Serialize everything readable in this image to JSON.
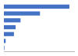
{
  "chart_data": {
    "type": "bar",
    "orientation": "horizontal",
    "categories": [
      null,
      null,
      null,
      null,
      null,
      null,
      null
    ],
    "values": [
      14762,
      8132,
      3753,
      2640,
      2262,
      400,
      115
    ],
    "color": "#4472c4",
    "xlim": [
      0,
      16000
    ],
    "tick_labels": false
  }
}
